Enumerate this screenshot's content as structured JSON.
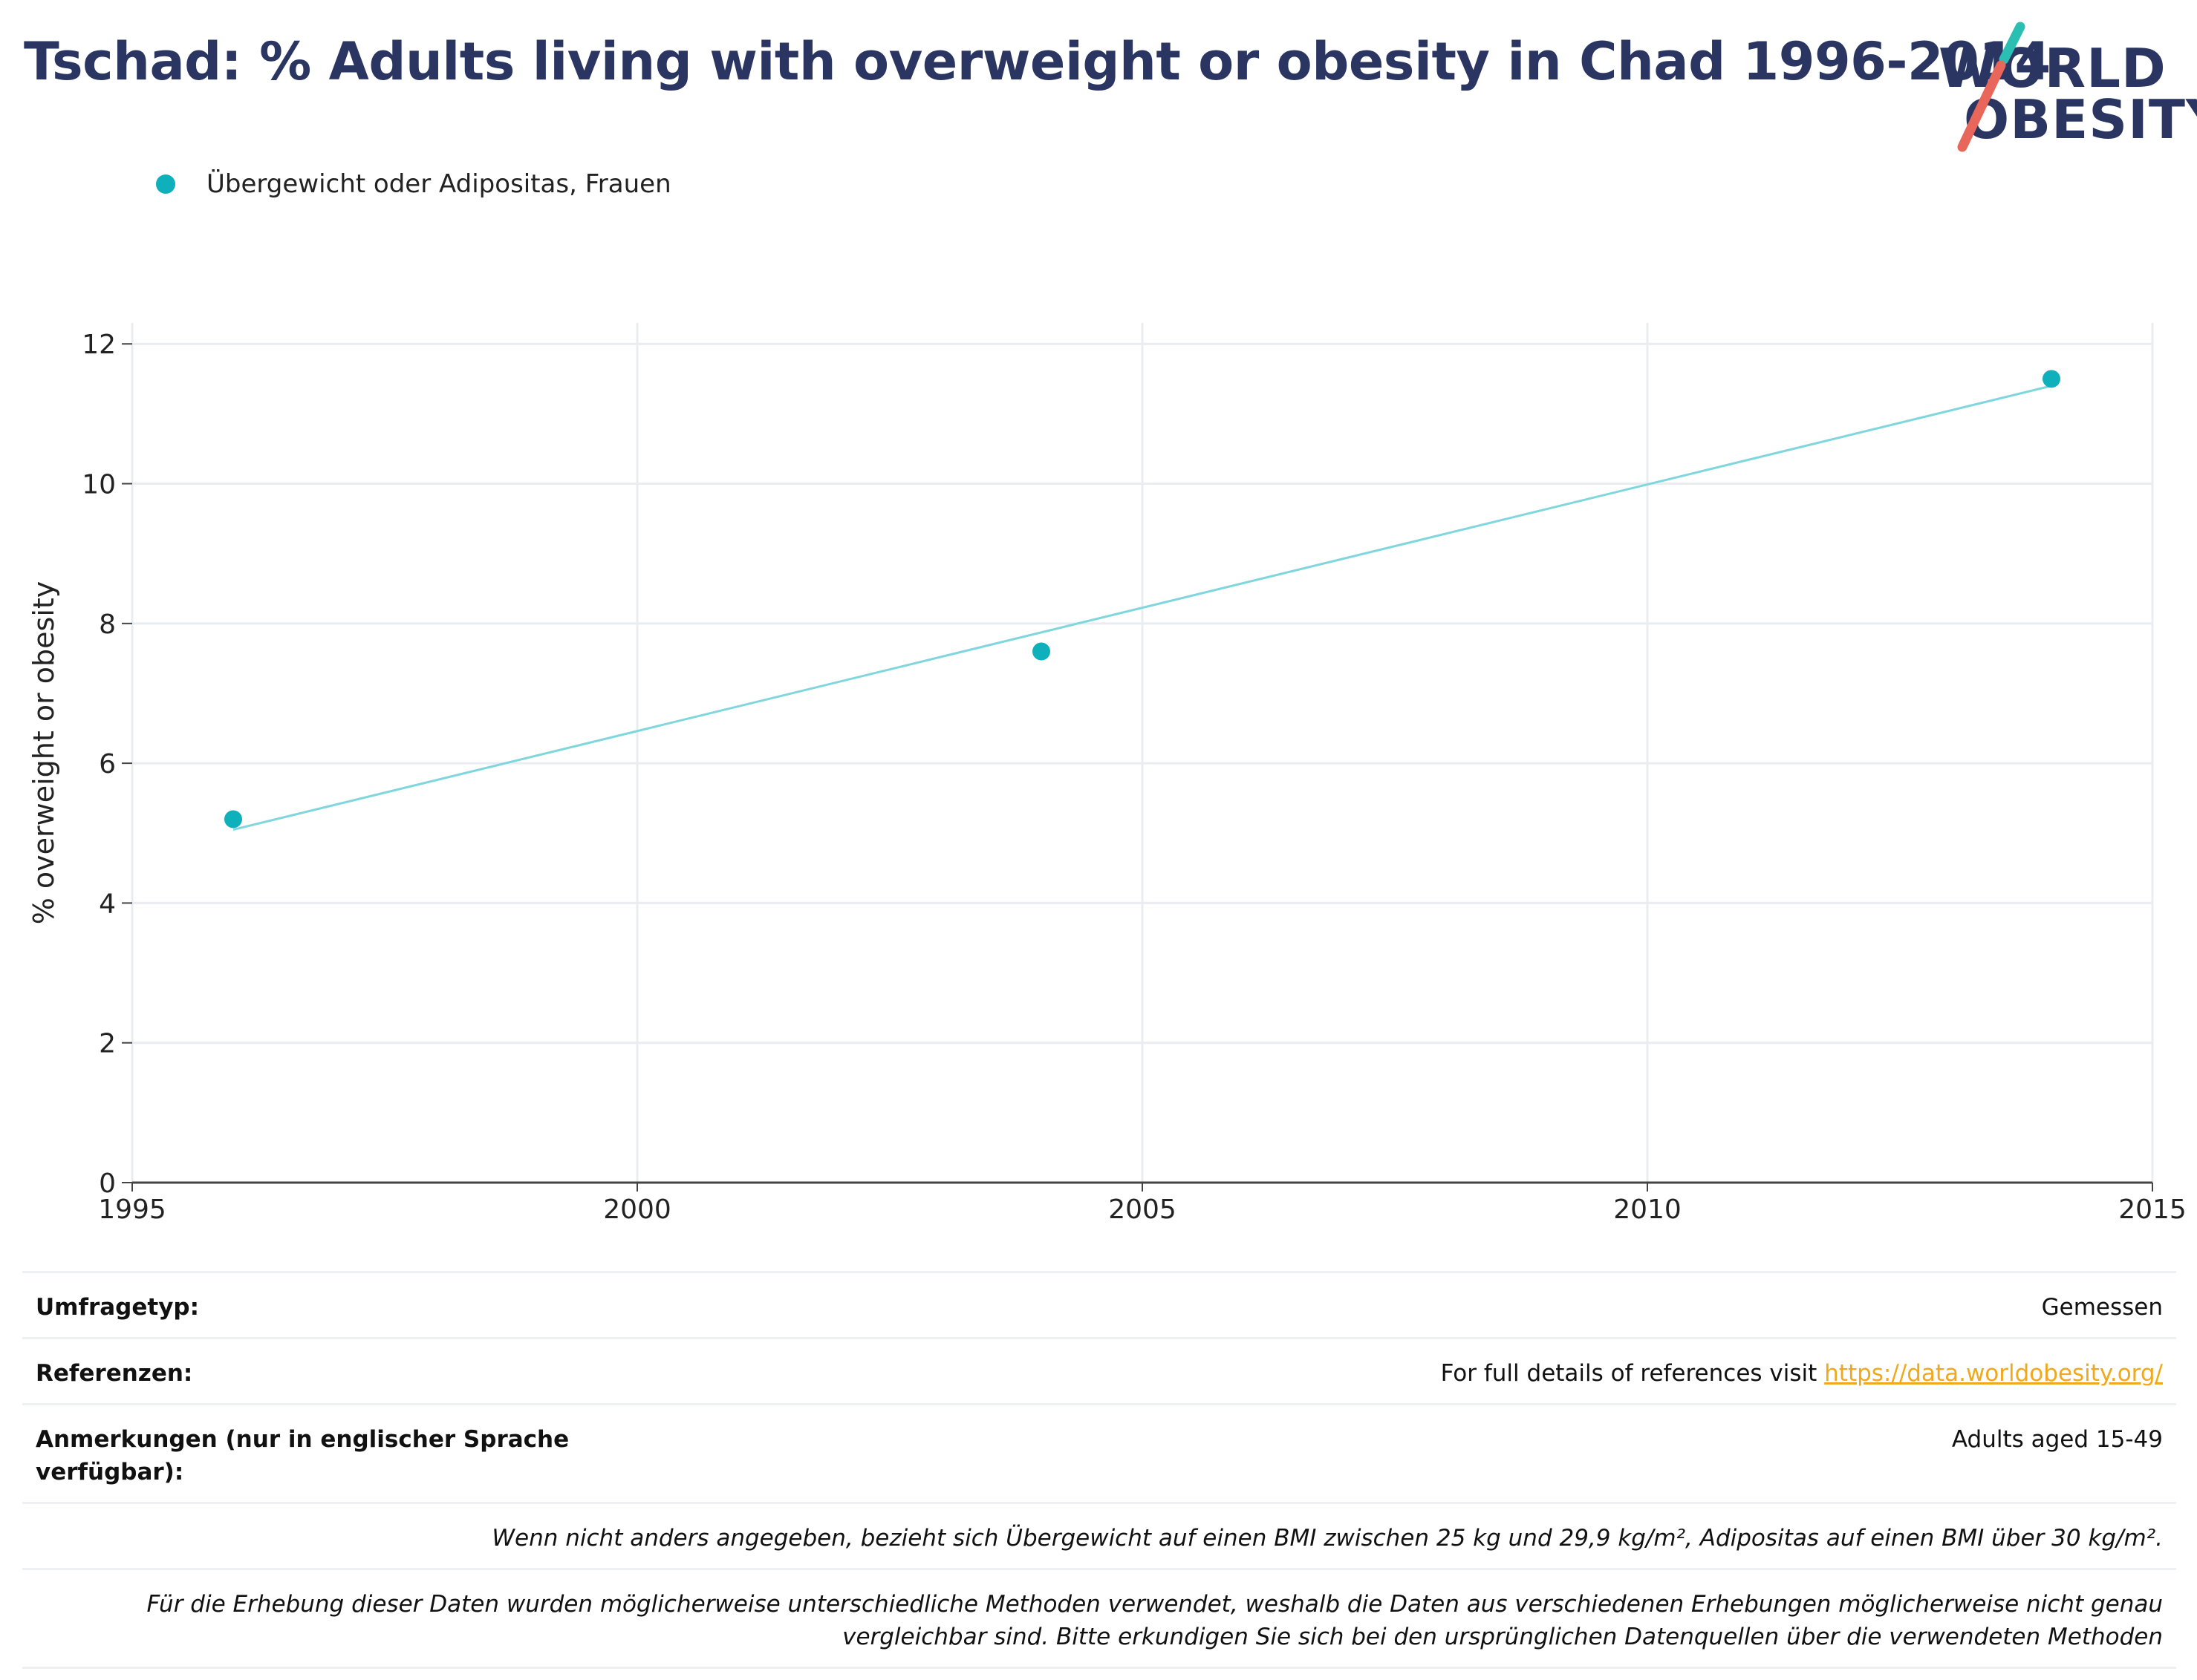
{
  "title": "Tschad: % Adults living with overweight or obesity in Chad 1996-2014",
  "logo": {
    "line1": "WORLD",
    "line2": "OBESITY",
    "slash_top_color": "#2bbfb3",
    "slash_bottom_color": "#e8665a"
  },
  "colors": {
    "accent": "#0eb0bc",
    "trend": "#7fd7dd",
    "title": "#2a3561",
    "link": "#f0a81c"
  },
  "chart_data": {
    "type": "scatter",
    "xlabel": "",
    "ylabel": "% overweight or obesity",
    "xlim": [
      1995,
      2015
    ],
    "ylim": [
      0,
      12.3
    ],
    "xticks": [
      "1995",
      "2000",
      "2005",
      "2010",
      "2015"
    ],
    "yticks": [
      "0",
      "2",
      "4",
      "6",
      "8",
      "10",
      "12"
    ],
    "grid": true,
    "legend_position": "top-left",
    "series": [
      {
        "name": "Übergewicht oder Adipositas, Frauen",
        "color": "#0eb0bc",
        "x": [
          1996,
          2004,
          2014
        ],
        "y": [
          5.2,
          7.6,
          11.5
        ]
      }
    ],
    "trendline": {
      "x": [
        1996,
        2014
      ],
      "y": [
        5.05,
        11.4
      ]
    }
  },
  "info": {
    "survey_label": "Umfragetyp:",
    "survey_value": "Gemessen",
    "refs_label": "Referenzen:",
    "refs_text": "For full details of references visit ",
    "refs_link": "https://data.worldobesity.org/",
    "notes_label": "Anmerkungen (nur in englischer Sprache verfügbar):",
    "notes_value": "Adults aged 15-49",
    "note_bmi": "Wenn nicht anders angegeben, bezieht sich Übergewicht auf einen BMI zwischen 25 kg und 29,9 kg/m², Adipositas auf einen BMI über 30 kg/m².",
    "note_methods_1": "Für die Erhebung dieser Daten wurden möglicherweise unterschiedliche Methoden verwendet, weshalb die Daten aus verschiedenen Erhebungen möglicherweise nicht genau",
    "note_methods_2": "vergleichbar sind. Bitte erkundigen Sie sich bei den ursprünglichen Datenquellen über die verwendeten Methoden"
  }
}
